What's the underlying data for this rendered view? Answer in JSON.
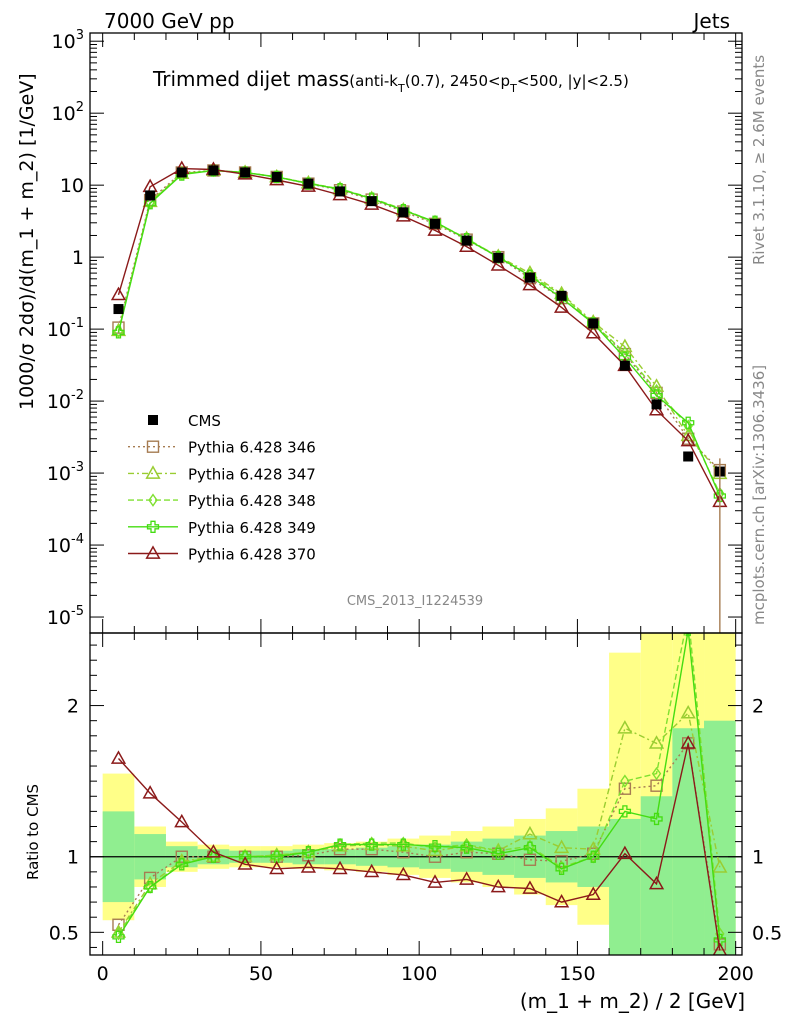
{
  "header": {
    "left": "7000 GeV pp",
    "right": "Jets"
  },
  "side": {
    "rivet": "Rivet 3.1.10, ≥ 2.6M events",
    "mcplots": "mcplots.cern.ch [arXiv:1306.3436]"
  },
  "watermark": "CMS_2013_I1224539",
  "title": {
    "main": "Trimmed dijet mass",
    "sub_a": "(anti-k",
    "sub_b": "T",
    "sub_c": "(0.7), 2450<p",
    "sub_d": "T",
    "sub_e": "<500, |y|<2.5)"
  },
  "ylabel_top": "1000/σ 2dσ)/d(m_1 + m_2) [1/GeV]",
  "ylabel_bottom": "Ratio to CMS",
  "xlabel": "(m_1 + m_2) / 2 [GeV]",
  "colors": {
    "cms": "#000000",
    "p346": "#a67c52",
    "p347": "#9acd32",
    "p348": "#7fe030",
    "p349": "#44dd11",
    "p370": "#8b1a1a",
    "band_inner": "#90ee90",
    "band_outer": "#ffff88"
  },
  "chart_data": {
    "type": "line",
    "x": [
      5,
      15,
      25,
      35,
      45,
      55,
      65,
      75,
      85,
      95,
      105,
      115,
      125,
      135,
      145,
      155,
      165,
      175,
      185,
      195
    ],
    "xlim": [
      -4,
      202
    ],
    "main": {
      "yscale": "log",
      "ylim": [
        6e-06,
        1300
      ],
      "yticks": [
        {
          "m": "10",
          "e": "-5",
          "v": 1e-05
        },
        {
          "m": "10",
          "e": "-4",
          "v": 0.0001
        },
        {
          "m": "10",
          "e": "-3",
          "v": 0.001
        },
        {
          "m": "10",
          "e": "-2",
          "v": 0.01
        },
        {
          "m": "10",
          "e": "-1",
          "v": 0.1
        },
        {
          "m": "1",
          "e": "",
          "v": 1
        },
        {
          "m": "10",
          "e": "",
          "v": 10
        },
        {
          "m": "10",
          "e": "2",
          "v": 100
        },
        {
          "m": "10",
          "e": "3",
          "v": 1000
        }
      ],
      "cms": [
        0.19,
        7.2,
        15,
        16,
        15,
        13,
        10.5,
        8.2,
        6.0,
        4.2,
        2.9,
        1.7,
        0.98,
        0.52,
        0.29,
        0.12,
        0.031,
        0.009,
        0.0017,
        0.00105
      ],
      "series": [
        {
          "name": "Pythia 6.428 346",
          "values": [
            0.105,
            6.2,
            15,
            16,
            15,
            13,
            10.5,
            8.5,
            6.3,
            4.3,
            2.9,
            1.75,
            1.0,
            0.51,
            0.27,
            0.12,
            0.045,
            0.013,
            0.003,
            0.0011
          ]
        },
        {
          "name": "Pythia 6.428 347",
          "values": [
            0.095,
            5.9,
            14.5,
            16,
            15,
            13,
            10.7,
            8.8,
            6.5,
            4.5,
            3.0,
            1.8,
            1.02,
            0.6,
            0.31,
            0.125,
            0.057,
            0.016,
            0.0033,
            0.00098
          ]
        },
        {
          "name": "Pythia 6.428 348",
          "values": [
            0.093,
            5.7,
            14.3,
            16,
            15,
            13,
            10.6,
            8.9,
            6.6,
            4.6,
            3.05,
            1.82,
            1.0,
            0.56,
            0.3,
            0.12,
            0.047,
            0.014,
            0.0045,
            0.00052
          ]
        },
        {
          "name": "Pythia 6.428 349",
          "values": [
            0.09,
            5.6,
            14,
            16,
            15,
            13,
            10.5,
            8.8,
            6.5,
            4.5,
            3.1,
            1.78,
            1.0,
            0.55,
            0.27,
            0.12,
            0.04,
            0.012,
            0.005,
            0.00048
          ]
        },
        {
          "name": "Pythia 6.428 370",
          "values": [
            0.3,
            9.5,
            17,
            16.5,
            14.2,
            11.8,
            9.6,
            7.3,
            5.4,
            3.7,
            2.35,
            1.4,
            0.77,
            0.41,
            0.2,
            0.088,
            0.031,
            0.0075,
            0.0028,
            0.0004
          ]
        }
      ]
    },
    "ratio": {
      "ylim": [
        0.35,
        2.48
      ],
      "yticks": [
        0.5,
        1,
        2
      ],
      "band_inner": [
        [
          0.7,
          1.3
        ],
        [
          0.85,
          1.15
        ],
        [
          0.93,
          1.07
        ],
        [
          0.95,
          1.05
        ],
        [
          0.96,
          1.04
        ],
        [
          0.96,
          1.04
        ],
        [
          0.95,
          1.05
        ],
        [
          0.95,
          1.05
        ],
        [
          0.94,
          1.06
        ],
        [
          0.93,
          1.07
        ],
        [
          0.92,
          1.08
        ],
        [
          0.9,
          1.1
        ],
        [
          0.88,
          1.12
        ],
        [
          0.86,
          1.14
        ],
        [
          0.83,
          1.17
        ],
        [
          0.8,
          1.2
        ],
        [
          0.0,
          1.25
        ],
        [
          0.0,
          1.4
        ],
        [
          0.0,
          1.85
        ],
        [
          0.0,
          1.9
        ]
      ],
      "band_outer": [
        [
          0.58,
          1.55
        ],
        [
          0.8,
          1.2
        ],
        [
          0.9,
          1.1
        ],
        [
          0.92,
          1.08
        ],
        [
          0.93,
          1.07
        ],
        [
          0.93,
          1.07
        ],
        [
          0.92,
          1.08
        ],
        [
          0.91,
          1.09
        ],
        [
          0.9,
          1.1
        ],
        [
          0.88,
          1.12
        ],
        [
          0.86,
          1.14
        ],
        [
          0.83,
          1.17
        ],
        [
          0.8,
          1.2
        ],
        [
          0.75,
          1.25
        ],
        [
          0.68,
          1.32
        ],
        [
          0.55,
          1.45
        ],
        [
          0.0,
          2.35
        ],
        [
          0.0,
          2.48
        ],
        [
          0.0,
          2.48
        ],
        [
          0.0,
          2.48
        ]
      ],
      "series": [
        {
          "name": "Pythia 6.428 346",
          "values": [
            0.55,
            0.86,
            1.0,
            1.0,
            1.0,
            1.0,
            1.01,
            1.05,
            1.05,
            1.03,
            1.0,
            1.03,
            1.02,
            0.98,
            0.97,
            1.02,
            1.45,
            1.47,
            1.75,
            0.42
          ]
        },
        {
          "name": "Pythia 6.428 347",
          "values": [
            0.5,
            0.82,
            0.97,
            1.0,
            1.0,
            1.01,
            1.03,
            1.07,
            1.08,
            1.07,
            1.04,
            1.07,
            1.04,
            1.15,
            1.06,
            1.05,
            1.85,
            1.75,
            1.95,
            0.93
          ]
        },
        {
          "name": "Pythia 6.428 348",
          "values": [
            0.49,
            0.8,
            0.96,
            1.0,
            1.0,
            1.01,
            1.03,
            1.08,
            1.09,
            1.09,
            1.06,
            1.08,
            1.04,
            1.07,
            0.93,
            1.0,
            1.5,
            1.55,
            2.6,
            0.49
          ]
        },
        {
          "name": "Pythia 6.428 349",
          "values": [
            0.47,
            0.8,
            0.95,
            1.0,
            1.0,
            1.0,
            1.03,
            1.08,
            1.08,
            1.08,
            1.07,
            1.06,
            1.02,
            1.06,
            0.92,
            1.0,
            1.3,
            1.25,
            2.5,
            0.45
          ]
        },
        {
          "name": "Pythia 6.428 370",
          "values": [
            1.65,
            1.42,
            1.23,
            1.03,
            0.95,
            0.92,
            0.93,
            0.92,
            0.9,
            0.88,
            0.83,
            0.85,
            0.8,
            0.79,
            0.7,
            0.75,
            1.02,
            0.82,
            1.75,
            0.38
          ]
        }
      ]
    },
    "xticks": [
      0,
      50,
      100,
      150,
      200
    ]
  }
}
